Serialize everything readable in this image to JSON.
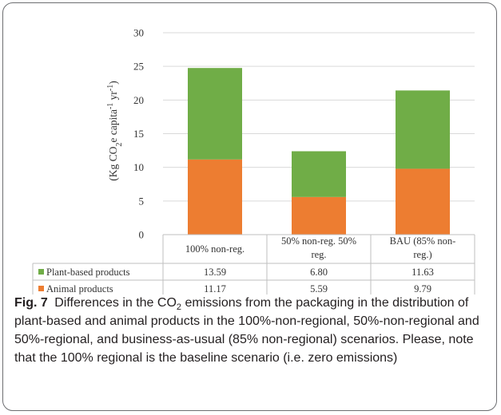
{
  "chart_data": {
    "type": "bar",
    "stacked": true,
    "categories": [
      [
        "100% non-reg."
      ],
      [
        "50% non-reg. 50%",
        "reg."
      ],
      [
        "BAU (85% non-",
        "reg.)"
      ]
    ],
    "series": [
      {
        "name": "Animal products",
        "color": "#ed7d31",
        "values": [
          11.17,
          5.59,
          9.79
        ],
        "labels": [
          "11.17",
          "5.59",
          "9.79"
        ]
      },
      {
        "name": "Plant-based products",
        "color": "#70ad47",
        "values": [
          13.59,
          6.8,
          11.63
        ],
        "labels": [
          "13.59",
          "6.80",
          "11.63"
        ]
      }
    ],
    "table_series_order": [
      1,
      0
    ],
    "ylabel": {
      "prefix": "(Kg CO",
      "sub": "2",
      "mid": "e capita",
      "sup1": "-1",
      "mid2": " yr",
      "sup2": "-1",
      "suffix": ")"
    },
    "ylim": [
      0,
      30
    ],
    "yticks": [
      0,
      5,
      10,
      15,
      20,
      25,
      30
    ],
    "grid": true,
    "legend": "data-table"
  },
  "caption": {
    "label": "Fig. 7",
    "text_before_sub": "Differences in the CO",
    "sub": "2",
    "text_after_sub": " emissions from the packaging in the distribution of plant-based and animal products in the 100%-non-regional, 50%-non-regional and 50%-regional, and business-as-usual (85% non-regional) scenarios. Please, note that the 100% regional is the baseline scenario (i.e. zero emissions)"
  }
}
